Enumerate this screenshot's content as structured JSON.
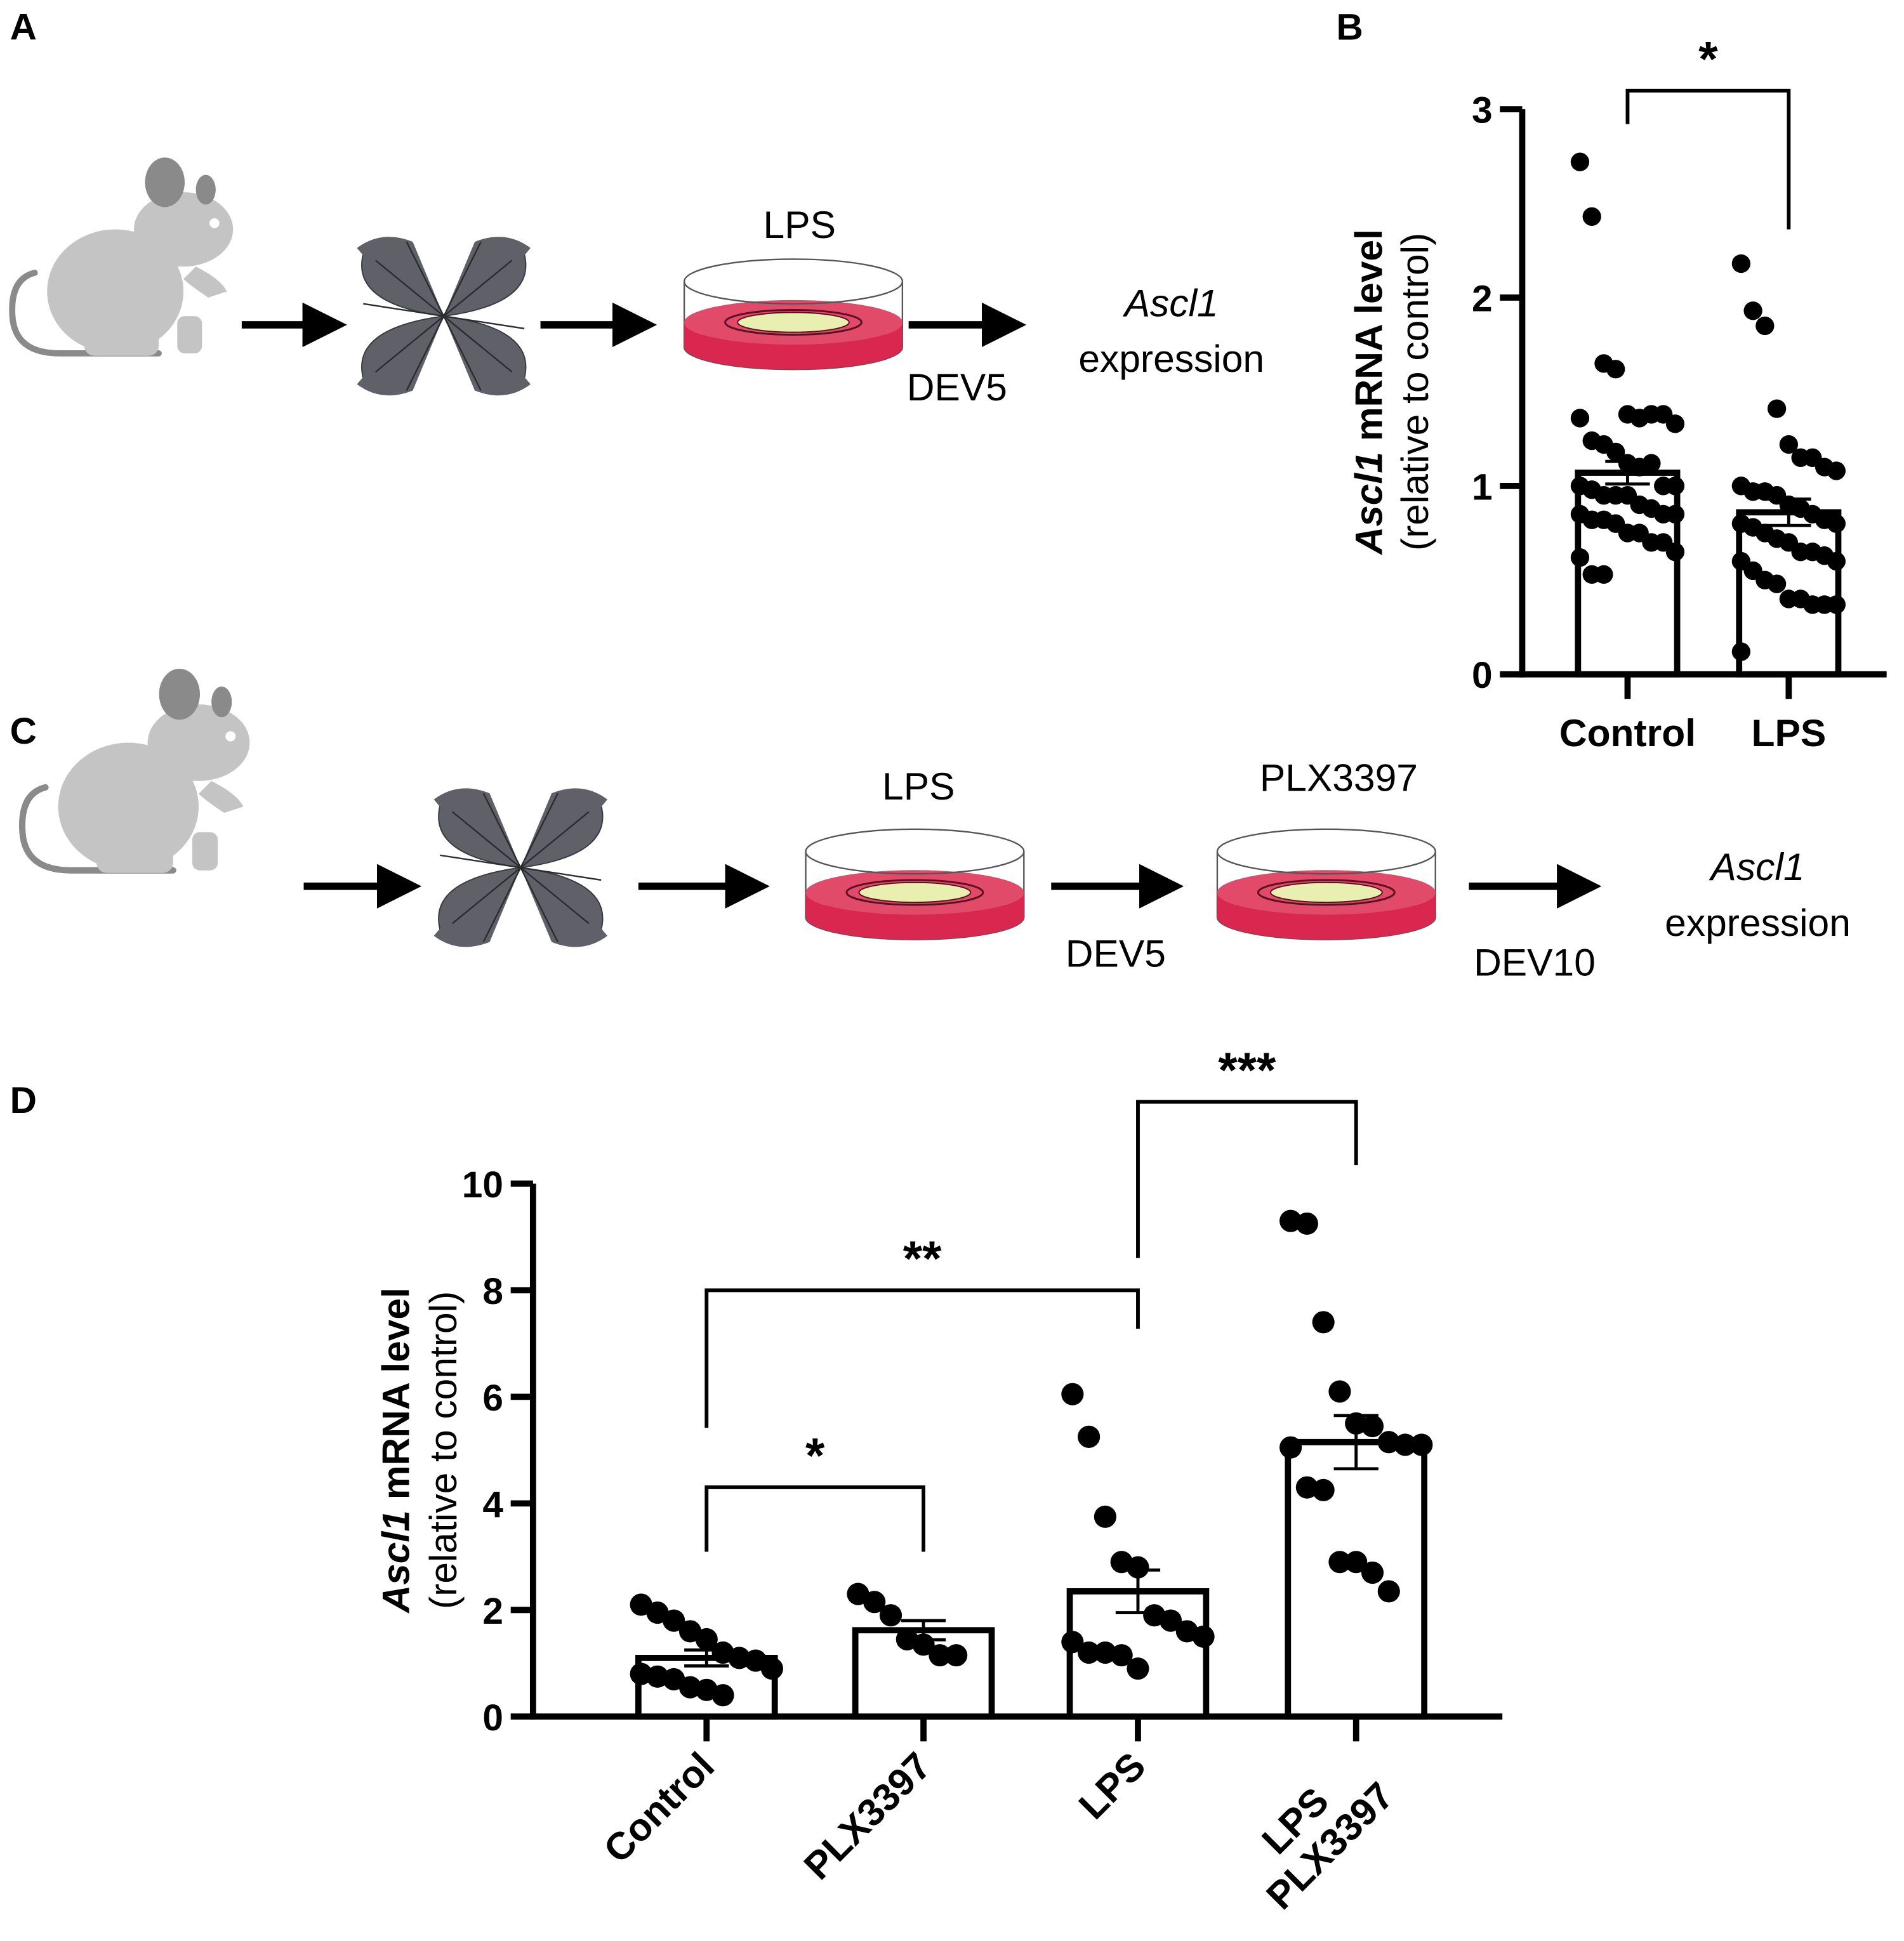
{
  "panels": {
    "a": "A",
    "b": "B",
    "c": "C",
    "d": "D"
  },
  "schematic_a": {
    "treatment": "LPS",
    "time": "DEV5",
    "readout_gene": "Ascl1",
    "readout": "expression"
  },
  "schematic_c": {
    "treatment1": "LPS",
    "time1": "DEV5",
    "treatment2": "PLX3397",
    "time2": "DEV10",
    "readout_gene": "Ascl1",
    "readout": "expression"
  },
  "colors": {
    "mouse": "#c4c4c4",
    "retina": "#5f6068",
    "medium": "#d9274f",
    "tissue": "#e8efb0",
    "ink": "#000000"
  },
  "chart_data": [
    {
      "type": "bar",
      "panel": "B",
      "ylabel_gene": "Ascl1",
      "ylabel_main": " mRNA level",
      "ylabel_sub": "(relative to control)",
      "ylim": [
        0,
        3
      ],
      "yticks": [
        "0",
        "1",
        "2",
        "3"
      ],
      "categories": [
        "Control",
        "LPS"
      ],
      "means": [
        1.07,
        0.86
      ],
      "sem": [
        0.06,
        0.07
      ],
      "points": [
        [
          2.72,
          2.43,
          1.65,
          1.62,
          1.38,
          1.36,
          1.38,
          1.38,
          1.33,
          1.36,
          1.24,
          1.22,
          1.18,
          1.12,
          1.1,
          1.12,
          1.0,
          1.0,
          1.0,
          0.98,
          0.95,
          0.95,
          0.95,
          0.9,
          0.88,
          0.85,
          0.85,
          0.85,
          0.82,
          0.82,
          0.8,
          0.75,
          0.75,
          0.7,
          0.7,
          0.65,
          0.62,
          0.53,
          0.53
        ],
        [
          2.18,
          1.93,
          1.85,
          1.41,
          1.22,
          1.15,
          1.15,
          1.1,
          1.08,
          1.0,
          0.97,
          0.97,
          0.95,
          0.9,
          0.88,
          0.85,
          0.82,
          0.8,
          0.8,
          0.78,
          0.75,
          0.72,
          0.7,
          0.65,
          0.65,
          0.63,
          0.6,
          0.6,
          0.55,
          0.5,
          0.48,
          0.4,
          0.4,
          0.37,
          0.37,
          0.37,
          0.12
        ]
      ],
      "comparisons": [
        {
          "groups": [
            0,
            1
          ],
          "label": "*"
        }
      ]
    },
    {
      "type": "bar",
      "panel": "D",
      "ylabel_gene": "Ascl1",
      "ylabel_main": " mRNA level",
      "ylabel_sub": "(relative to control)",
      "ylim": [
        0,
        10
      ],
      "yticks": [
        "0",
        "2",
        "4",
        "6",
        "8",
        "10"
      ],
      "categories": [
        "Control",
        "PLX3397",
        "LPS",
        "LPS PLX3397"
      ],
      "category_lines": [
        [
          "Control"
        ],
        [
          "PLX3397"
        ],
        [
          "LPS"
        ],
        [
          "LPS",
          "PLX3397"
        ]
      ],
      "means": [
        1.1,
        1.62,
        2.35,
        5.15
      ],
      "sem": [
        0.15,
        0.18,
        0.4,
        0.5
      ],
      "points": [
        [
          2.1,
          1.95,
          1.8,
          1.6,
          1.45,
          1.2,
          1.1,
          1.05,
          0.9,
          0.8,
          0.75,
          0.7,
          0.55,
          0.5,
          0.4
        ],
        [
          2.3,
          2.15,
          1.9,
          1.45,
          1.35,
          1.15,
          1.15
        ],
        [
          6.05,
          5.25,
          3.75,
          2.9,
          2.8,
          1.9,
          1.8,
          1.6,
          1.5,
          1.4,
          1.2,
          1.2,
          1.15,
          0.9
        ],
        [
          9.3,
          9.25,
          7.4,
          6.1,
          5.5,
          5.45,
          5.15,
          5.1,
          5.1,
          5.05,
          4.3,
          4.25,
          2.9,
          2.9,
          2.7,
          2.35
        ]
      ],
      "comparisons": [
        {
          "groups": [
            0,
            1
          ],
          "label": "*"
        },
        {
          "groups": [
            0,
            2
          ],
          "label": "**"
        },
        {
          "groups": [
            2,
            3
          ],
          "label": "***"
        }
      ]
    }
  ]
}
